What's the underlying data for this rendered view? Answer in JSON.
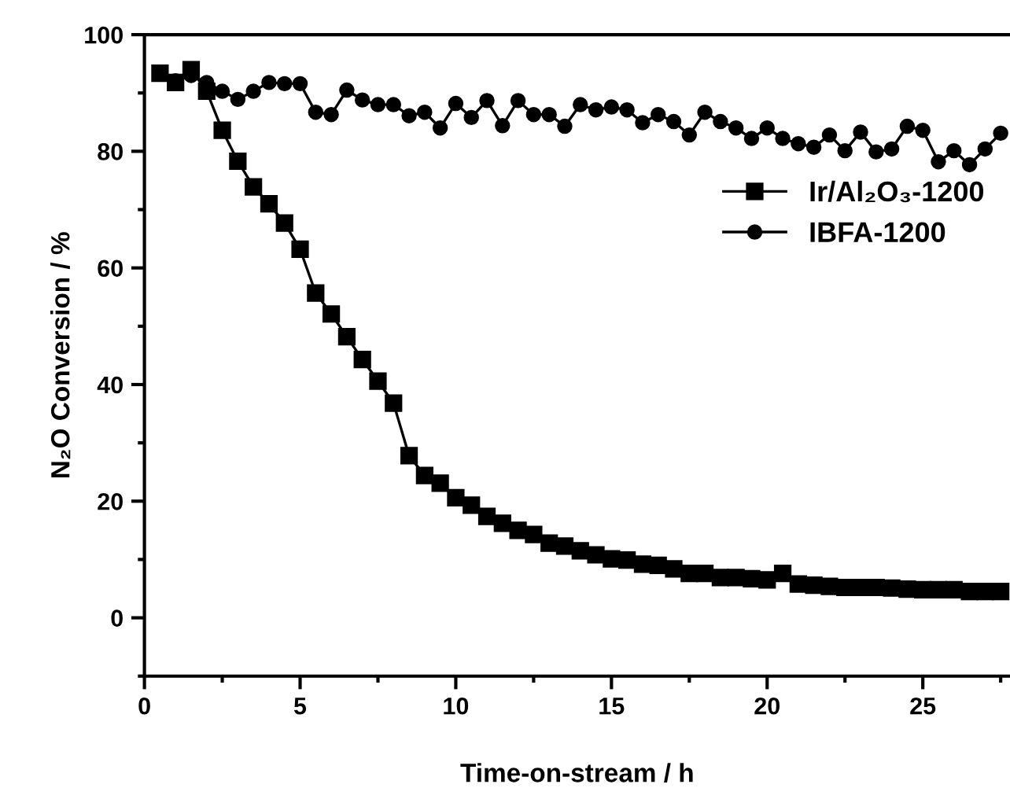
{
  "chart_data": {
    "type": "line",
    "xlabel": "Time-on-stream / h",
    "ylabel": "N₂O Conversion / %",
    "xlim": [
      0,
      27.8
    ],
    "ylim": [
      -10,
      100
    ],
    "xticks": [
      0,
      5,
      10,
      15,
      20,
      25
    ],
    "yticks": [
      0,
      20,
      40,
      60,
      80,
      100
    ],
    "grid": false,
    "legend": "right",
    "line_style": "solid",
    "series": [
      {
        "name": "Ir/Al₂O₃-1200",
        "color": "#000000",
        "marker": "square",
        "x": [
          0.5,
          1,
          1.5,
          2,
          2.5,
          3,
          3.5,
          4,
          4.5,
          5,
          5.5,
          6,
          6.5,
          7,
          7.5,
          8,
          8.5,
          9,
          9.5,
          10,
          10.5,
          11,
          11.5,
          12,
          12.5,
          13,
          13.5,
          14,
          14.5,
          15,
          15.5,
          16,
          16.5,
          17,
          17.5,
          18,
          18.5,
          19,
          19.5,
          20,
          20.5,
          21,
          21.5,
          22,
          22.5,
          23,
          23.5,
          24,
          24.5,
          25,
          25.5,
          26,
          26.5,
          27,
          27.5
        ],
        "values": [
          93.4,
          91.8,
          94,
          90.3,
          83.6,
          78.3,
          73.9,
          71,
          67.7,
          63.2,
          55.7,
          52.1,
          48.2,
          44.3,
          40.6,
          36.8,
          27.8,
          24.4,
          23.1,
          20.6,
          19.3,
          17.4,
          16.2,
          15,
          14.3,
          12.8,
          12.3,
          11.5,
          10.8,
          10.1,
          9.9,
          9.2,
          9,
          8.4,
          7.6,
          7.6,
          6.9,
          6.9,
          6.7,
          6.5,
          7.6,
          5.8,
          5.6,
          5.4,
          5.2,
          5.2,
          5.2,
          5.1,
          4.9,
          4.8,
          4.8,
          4.8,
          4.5,
          4.5,
          4.5
        ]
      },
      {
        "name": "IBFA-1200",
        "color": "#000000",
        "marker": "circle",
        "x": [
          0.5,
          1,
          1.5,
          2,
          2.5,
          3,
          3.5,
          4,
          4.5,
          5,
          5.5,
          6,
          6.5,
          7,
          7.5,
          8,
          8.5,
          9,
          9.5,
          10,
          10.5,
          11,
          11.5,
          12,
          12.5,
          13,
          13.5,
          14,
          14.5,
          15,
          15.5,
          16,
          16.5,
          17,
          17.5,
          18,
          18.5,
          19,
          19.5,
          20,
          20.5,
          21,
          21.5,
          22,
          22.5,
          23,
          23.5,
          24,
          24.5,
          25,
          25.5,
          26,
          26.5,
          27,
          27.5
        ],
        "values": [
          93.3,
          92.1,
          93,
          91.8,
          90.3,
          88.9,
          90.3,
          91.8,
          91.6,
          91.6,
          86.7,
          86.3,
          90.5,
          88.8,
          88,
          88,
          86.1,
          86.7,
          84,
          88.2,
          85.8,
          88.7,
          84.4,
          88.7,
          86.3,
          86.3,
          84.3,
          88,
          87.1,
          87.6,
          87.1,
          84.9,
          86.3,
          85.1,
          82.8,
          86.7,
          85.1,
          84,
          82.2,
          84,
          82.2,
          81.3,
          80.7,
          82.8,
          80.1,
          83.3,
          79.9,
          80.4,
          84.3,
          83.6,
          78.2,
          80.1,
          77.7,
          80.4,
          83.1
        ]
      }
    ]
  }
}
